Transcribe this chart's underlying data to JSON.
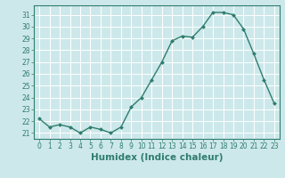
{
  "x": [
    0,
    1,
    2,
    3,
    4,
    5,
    6,
    7,
    8,
    9,
    10,
    11,
    12,
    13,
    14,
    15,
    16,
    17,
    18,
    19,
    20,
    21,
    22,
    23
  ],
  "y": [
    22.2,
    21.5,
    21.7,
    21.5,
    21.0,
    21.5,
    21.3,
    21.0,
    21.5,
    23.2,
    24.0,
    25.5,
    27.0,
    28.8,
    29.2,
    29.1,
    30.0,
    31.2,
    31.2,
    31.0,
    29.8,
    27.7,
    25.5,
    23.5
  ],
  "line_color": "#2e7d6e",
  "marker": "D",
  "marker_size": 2.0,
  "line_width": 1.0,
  "bg_color": "#cde8ea",
  "grid_color": "#ffffff",
  "xlabel": "Humidex (Indice chaleur)",
  "ylim": [
    20.5,
    31.8
  ],
  "xlim": [
    -0.5,
    23.5
  ],
  "yticks": [
    21,
    22,
    23,
    24,
    25,
    26,
    27,
    28,
    29,
    30,
    31
  ],
  "xticks": [
    0,
    1,
    2,
    3,
    4,
    5,
    6,
    7,
    8,
    9,
    10,
    11,
    12,
    13,
    14,
    15,
    16,
    17,
    18,
    19,
    20,
    21,
    22,
    23
  ],
  "tick_label_size": 5.5,
  "xlabel_size": 7.5,
  "axis_color": "#2e7d6e",
  "tick_color": "#2e7d6e",
  "spine_color": "#2e7d6e"
}
